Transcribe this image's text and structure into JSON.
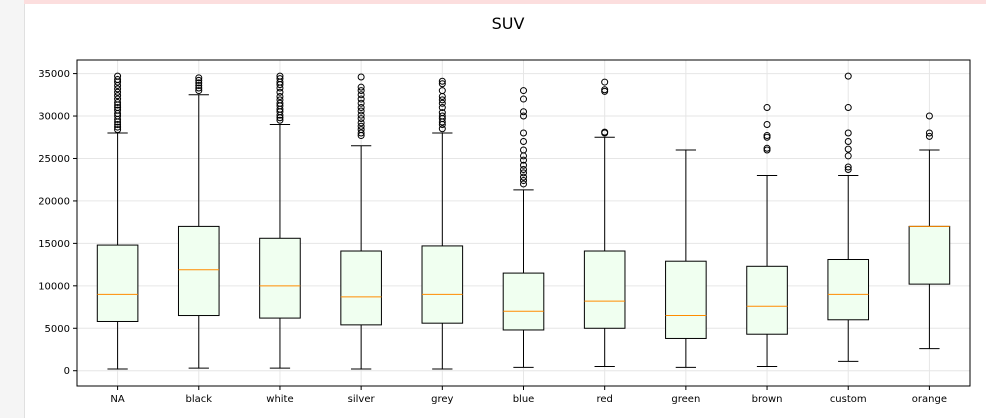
{
  "chart_data": {
    "type": "boxplot",
    "title": "SUV",
    "xlabel": "",
    "ylabel": "",
    "ylim": [
      -1800,
      36600
    ],
    "yticks": [
      0,
      5000,
      10000,
      15000,
      20000,
      25000,
      30000,
      35000
    ],
    "grid": true,
    "colors": {
      "box_fill": "#f0fff0",
      "box_edge": "#000000",
      "median": "#ff8c00",
      "grid": "#e6e6e6"
    },
    "categories": [
      "NA",
      "black",
      "white",
      "silver",
      "grey",
      "blue",
      "red",
      "green",
      "brown",
      "custom",
      "orange"
    ],
    "boxes": [
      {
        "whisker_low": 200,
        "q1": 5800,
        "median": 9000,
        "q3": 14800,
        "whisker_high": 28000,
        "outliers": [
          28400,
          28700,
          29000,
          29300,
          29600,
          30000,
          30300,
          30700,
          31000,
          31300,
          31600,
          32000,
          32400,
          32800,
          33200,
          33600,
          34000,
          34300,
          34700
        ]
      },
      {
        "whisker_low": 300,
        "q1": 6500,
        "median": 11900,
        "q3": 17000,
        "whisker_high": 32500,
        "outliers": [
          33000,
          33300,
          33600,
          33900,
          34200,
          34500
        ]
      },
      {
        "whisker_low": 300,
        "q1": 6200,
        "median": 10000,
        "q3": 15600,
        "whisker_high": 29000,
        "outliers": [
          29500,
          29800,
          30100,
          30500,
          30800,
          31200,
          31500,
          31900,
          32300,
          32800,
          33300,
          33700,
          34000,
          34400,
          34700
        ]
      },
      {
        "whisker_low": 200,
        "q1": 5400,
        "median": 8700,
        "q3": 14100,
        "whisker_high": 26500,
        "outliers": [
          27700,
          28000,
          28400,
          28800,
          29200,
          29700,
          30100,
          30600,
          31000,
          31500,
          32000,
          32500,
          33000,
          33400,
          34600
        ]
      },
      {
        "whisker_low": 200,
        "q1": 5600,
        "median": 9000,
        "q3": 14700,
        "whisker_high": 28000,
        "outliers": [
          28500,
          29000,
          29300,
          29700,
          30000,
          30400,
          31000,
          31500,
          31900,
          32300,
          33000,
          33800,
          34100
        ]
      },
      {
        "whisker_low": 400,
        "q1": 4800,
        "median": 7000,
        "q3": 11500,
        "whisker_high": 21300,
        "outliers": [
          22000,
          22400,
          22800,
          23300,
          23700,
          24200,
          24800,
          25300,
          26000,
          27000,
          28000,
          30000,
          30500,
          32000,
          33000
        ]
      },
      {
        "whisker_low": 500,
        "q1": 5000,
        "median": 8200,
        "q3": 14100,
        "whisker_high": 27500,
        "outliers": [
          28000,
          28100,
          32900,
          33100,
          34000
        ]
      },
      {
        "whisker_low": 400,
        "q1": 3800,
        "median": 6500,
        "q3": 12900,
        "whisker_high": 26000,
        "outliers": []
      },
      {
        "whisker_low": 500,
        "q1": 4300,
        "median": 7600,
        "q3": 12300,
        "whisker_high": 23000,
        "outliers": [
          26000,
          26200,
          27500,
          27700,
          29000,
          31000
        ]
      },
      {
        "whisker_low": 1100,
        "q1": 6000,
        "median": 9000,
        "q3": 13100,
        "whisker_high": 23000,
        "outliers": [
          23700,
          24000,
          25300,
          26100,
          27000,
          28000,
          31000,
          34700
        ]
      },
      {
        "whisker_low": 2600,
        "q1": 10200,
        "median": 17000,
        "q3": 17000,
        "whisker_high": 26000,
        "outliers": [
          27600,
          28000,
          30000
        ]
      }
    ]
  }
}
